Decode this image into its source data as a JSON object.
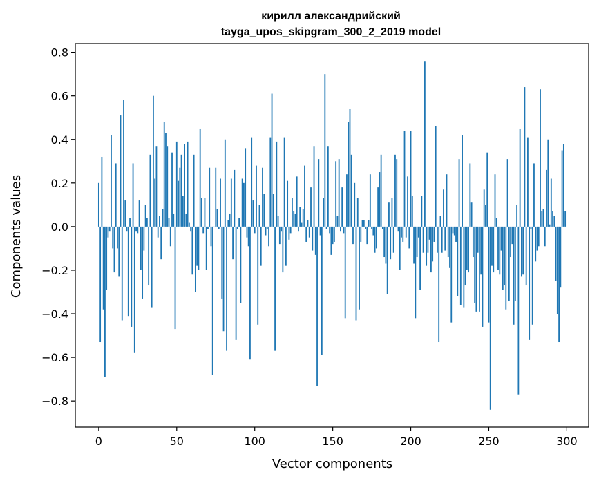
{
  "chart_data": {
    "type": "bar",
    "title": "кирилл александрийский",
    "subtitle": "tayga_upos_skipgram_300_2_2019 model",
    "xlabel": "Vector components",
    "ylabel": "Components values",
    "xlim": [
      -15,
      314
    ],
    "ylim": [
      -0.92,
      0.84
    ],
    "xticks": [
      0,
      50,
      100,
      150,
      200,
      250,
      300
    ],
    "xtick_labels": [
      "0",
      "50",
      "100",
      "150",
      "200",
      "250",
      "300"
    ],
    "yticks": [
      -0.8,
      -0.6,
      -0.4,
      -0.2,
      0.0,
      0.2,
      0.4,
      0.6,
      0.8
    ],
    "ytick_labels": [
      "−0.8",
      "−0.6",
      "−0.4",
      "−0.2",
      "0.0",
      "0.2",
      "0.4",
      "0.6",
      "0.8"
    ],
    "bar_color": "#1f77b4",
    "grid": false,
    "x": "0..299 (component index)",
    "values": [
      0.2,
      -0.53,
      0.32,
      -0.38,
      -0.69,
      -0.29,
      -0.05,
      -0.02,
      0.42,
      -0.1,
      -0.21,
      0.29,
      -0.1,
      -0.23,
      0.51,
      -0.43,
      0.58,
      0.12,
      -0.02,
      -0.41,
      0.04,
      -0.46,
      0.29,
      -0.58,
      -0.02,
      -0.03,
      0.12,
      -0.2,
      -0.33,
      -0.11,
      0.1,
      0.04,
      -0.27,
      0.33,
      -0.37,
      0.6,
      0.22,
      0.37,
      -0.05,
      0.05,
      -0.15,
      0.08,
      0.48,
      0.43,
      0.37,
      0.04,
      -0.09,
      0.34,
      0.06,
      -0.47,
      0.39,
      0.21,
      0.27,
      0.33,
      0.14,
      0.38,
      0.06,
      0.39,
      0.02,
      -0.02,
      -0.22,
      0.33,
      -0.3,
      -0.18,
      -0.2,
      0.45,
      0.13,
      -0.03,
      0.13,
      -0.2,
      -0.01,
      0.27,
      -0.09,
      -0.68,
      0.0,
      0.27,
      0.08,
      -0.01,
      0.22,
      -0.33,
      -0.48,
      0.4,
      -0.57,
      0.03,
      0.06,
      0.22,
      -0.15,
      0.26,
      -0.52,
      -0.01,
      0.04,
      -0.35,
      0.22,
      0.2,
      0.36,
      -0.05,
      -0.09,
      -0.61,
      0.41,
      0.12,
      -0.03,
      0.28,
      -0.45,
      0.1,
      -0.18,
      0.27,
      0.15,
      -0.04,
      -0.01,
      -0.09,
      0.41,
      0.61,
      0.15,
      -0.57,
      0.39,
      0.05,
      -0.08,
      -0.02,
      -0.21,
      0.41,
      -0.18,
      0.21,
      -0.06,
      -0.03,
      0.13,
      0.07,
      0.06,
      0.23,
      -0.02,
      0.09,
      0.02,
      0.08,
      0.28,
      -0.07,
      0.03,
      -0.05,
      0.18,
      -0.11,
      0.37,
      -0.13,
      -0.73,
      0.31,
      -0.04,
      -0.59,
      0.13,
      0.7,
      -0.01,
      0.37,
      -0.03,
      -0.13,
      -0.08,
      -0.07,
      0.3,
      0.05,
      0.31,
      -0.02,
      0.18,
      -0.03,
      -0.42,
      0.24,
      0.48,
      0.54,
      0.33,
      -0.08,
      0.2,
      -0.43,
      0.13,
      -0.38,
      -0.07,
      0.03,
      0.03,
      -0.01,
      -0.08,
      0.03,
      0.24,
      -0.01,
      -0.04,
      -0.12,
      -0.1,
      0.18,
      0.25,
      0.33,
      -0.01,
      -0.14,
      -0.17,
      -0.31,
      0.11,
      -0.15,
      0.13,
      -0.12,
      0.33,
      0.31,
      -0.02,
      -0.2,
      -0.05,
      -0.07,
      0.44,
      -0.05,
      0.23,
      -0.1,
      0.44,
      0.14,
      -0.17,
      -0.42,
      -0.14,
      -0.05,
      -0.29,
      0.14,
      -0.12,
      0.76,
      -0.18,
      -0.12,
      -0.06,
      -0.21,
      -0.16,
      -0.07,
      0.46,
      -0.12,
      -0.53,
      0.05,
      -0.12,
      0.17,
      -0.11,
      0.24,
      -0.14,
      -0.19,
      -0.44,
      -0.03,
      -0.04,
      -0.07,
      -0.32,
      0.31,
      -0.36,
      0.42,
      -0.37,
      -0.27,
      -0.2,
      -0.21,
      0.29,
      0.11,
      -0.14,
      -0.35,
      -0.39,
      -0.12,
      -0.39,
      -0.22,
      -0.46,
      0.17,
      0.1,
      0.34,
      -0.44,
      -0.84,
      -0.18,
      -0.21,
      0.24,
      0.04,
      -0.2,
      -0.22,
      -0.11,
      -0.29,
      -0.27,
      -0.38,
      0.31,
      -0.34,
      -0.14,
      -0.08,
      -0.45,
      -0.34,
      0.1,
      -0.77,
      0.45,
      -0.23,
      -0.22,
      0.64,
      -0.27,
      0.41,
      -0.52,
      -0.01,
      -0.45,
      0.29,
      -0.16,
      -0.11,
      -0.09,
      0.63,
      0.07,
      0.08,
      -0.09,
      0.26,
      0.4,
      0.01,
      0.22,
      0.07,
      0.05,
      -0.25,
      -0.4,
      -0.53,
      -0.28,
      0.35,
      0.38,
      0.07
    ]
  }
}
